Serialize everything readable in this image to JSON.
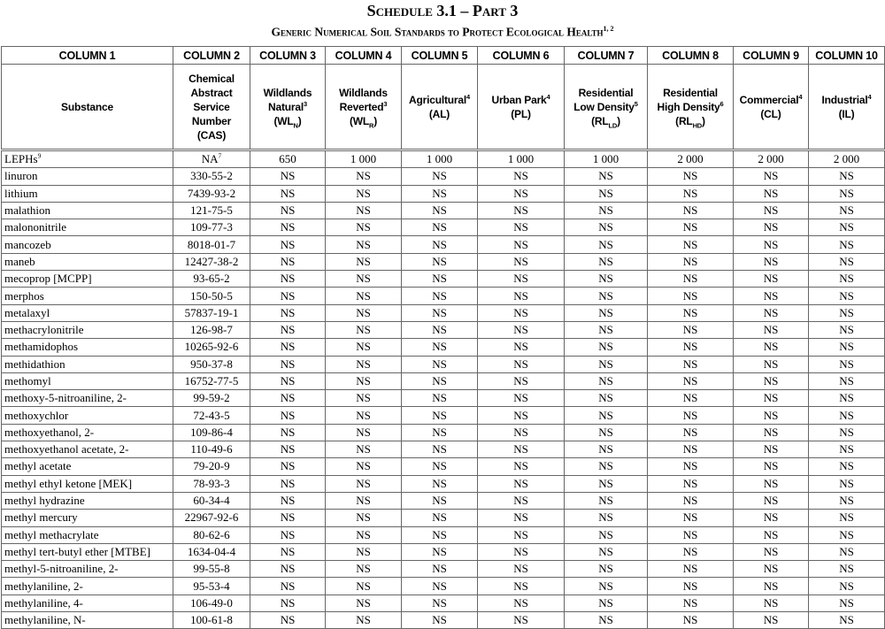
{
  "title": "Schedule 3.1 – Part 3",
  "subtitle": "Generic Numerical Soil Standards to Protect Ecological Health",
  "subtitle_sup": "1, 2",
  "columns": [
    {
      "number": "COLUMN 1",
      "lines": [
        [
          "Substance"
        ]
      ]
    },
    {
      "number": "COLUMN 2",
      "lines": [
        [
          "Chemical"
        ],
        [
          "Abstract"
        ],
        [
          "Service"
        ],
        [
          "Number"
        ],
        [
          "(CAS)"
        ]
      ]
    },
    {
      "number": "COLUMN 3",
      "lines": [
        [
          "Wildlands"
        ],
        [
          "Natural",
          {
            "sup": "3"
          }
        ],
        [
          "(WL",
          {
            "sub": "N"
          },
          ")"
        ]
      ]
    },
    {
      "number": "COLUMN 4",
      "lines": [
        [
          "Wildlands"
        ],
        [
          "Reverted",
          {
            "sup": "3"
          }
        ],
        [
          "(WL",
          {
            "sub": "R"
          },
          ")"
        ]
      ]
    },
    {
      "number": "COLUMN 5",
      "lines": [
        [
          "Agricultural",
          {
            "sup": "4"
          }
        ],
        [
          "(AL)"
        ]
      ]
    },
    {
      "number": "COLUMN 6",
      "lines": [
        [
          "Urban Park",
          {
            "sup": "4"
          }
        ],
        [
          "(PL)"
        ]
      ]
    },
    {
      "number": "COLUMN 7",
      "lines": [
        [
          "Residential"
        ],
        [
          "Low Density",
          {
            "sup": "5"
          }
        ],
        [
          "(RL",
          {
            "sub": "LD"
          },
          ")"
        ]
      ]
    },
    {
      "number": "COLUMN 8",
      "lines": [
        [
          "Residential"
        ],
        [
          "High Density",
          {
            "sup": "6"
          }
        ],
        [
          "(RL",
          {
            "sub": "HD"
          },
          ")"
        ]
      ]
    },
    {
      "number": "COLUMN 9",
      "lines": [
        [
          "Commercial",
          {
            "sup": "4"
          }
        ],
        [
          "(CL)"
        ]
      ]
    },
    {
      "number": "COLUMN 10",
      "lines": [
        [
          "Industrial",
          {
            "sup": "4"
          }
        ],
        [
          "(IL)"
        ]
      ]
    }
  ],
  "rows": [
    {
      "substance": "LEPHs",
      "substance_sup": "9",
      "cas": "NA",
      "cas_sup": "7",
      "values": [
        "650",
        "1 000",
        "1 000",
        "1 000",
        "1 000",
        "2 000",
        "2 000",
        "2 000"
      ]
    },
    {
      "substance": "linuron",
      "cas": "330-55-2",
      "values": [
        "NS",
        "NS",
        "NS",
        "NS",
        "NS",
        "NS",
        "NS",
        "NS"
      ]
    },
    {
      "substance": "lithium",
      "cas": "7439-93-2",
      "values": [
        "NS",
        "NS",
        "NS",
        "NS",
        "NS",
        "NS",
        "NS",
        "NS"
      ]
    },
    {
      "substance": "malathion",
      "cas": "121-75-5",
      "values": [
        "NS",
        "NS",
        "NS",
        "NS",
        "NS",
        "NS",
        "NS",
        "NS"
      ]
    },
    {
      "substance": "malononitrile",
      "cas": "109-77-3",
      "values": [
        "NS",
        "NS",
        "NS",
        "NS",
        "NS",
        "NS",
        "NS",
        "NS"
      ]
    },
    {
      "substance": "mancozeb",
      "cas": "8018-01-7",
      "values": [
        "NS",
        "NS",
        "NS",
        "NS",
        "NS",
        "NS",
        "NS",
        "NS"
      ]
    },
    {
      "substance": "maneb",
      "cas": "12427-38-2",
      "values": [
        "NS",
        "NS",
        "NS",
        "NS",
        "NS",
        "NS",
        "NS",
        "NS"
      ]
    },
    {
      "substance": "mecoprop [MCPP]",
      "cas": "93-65-2",
      "values": [
        "NS",
        "NS",
        "NS",
        "NS",
        "NS",
        "NS",
        "NS",
        "NS"
      ]
    },
    {
      "substance": "merphos",
      "cas": "150-50-5",
      "values": [
        "NS",
        "NS",
        "NS",
        "NS",
        "NS",
        "NS",
        "NS",
        "NS"
      ]
    },
    {
      "substance": "metalaxyl",
      "cas": "57837-19-1",
      "values": [
        "NS",
        "NS",
        "NS",
        "NS",
        "NS",
        "NS",
        "NS",
        "NS"
      ]
    },
    {
      "substance": "methacrylonitrile",
      "cas": "126-98-7",
      "values": [
        "NS",
        "NS",
        "NS",
        "NS",
        "NS",
        "NS",
        "NS",
        "NS"
      ]
    },
    {
      "substance": "methamidophos",
      "cas": "10265-92-6",
      "values": [
        "NS",
        "NS",
        "NS",
        "NS",
        "NS",
        "NS",
        "NS",
        "NS"
      ]
    },
    {
      "substance": "methidathion",
      "cas": "950-37-8",
      "values": [
        "NS",
        "NS",
        "NS",
        "NS",
        "NS",
        "NS",
        "NS",
        "NS"
      ]
    },
    {
      "substance": "methomyl",
      "cas": "16752-77-5",
      "values": [
        "NS",
        "NS",
        "NS",
        "NS",
        "NS",
        "NS",
        "NS",
        "NS"
      ]
    },
    {
      "substance": "methoxy-5-nitroaniline, 2-",
      "cas": "99-59-2",
      "values": [
        "NS",
        "NS",
        "NS",
        "NS",
        "NS",
        "NS",
        "NS",
        "NS"
      ]
    },
    {
      "substance": "methoxychlor",
      "cas": "72-43-5",
      "values": [
        "NS",
        "NS",
        "NS",
        "NS",
        "NS",
        "NS",
        "NS",
        "NS"
      ]
    },
    {
      "substance": "methoxyethanol, 2-",
      "cas": "109-86-4",
      "values": [
        "NS",
        "NS",
        "NS",
        "NS",
        "NS",
        "NS",
        "NS",
        "NS"
      ]
    },
    {
      "substance": "methoxyethanol acetate, 2-",
      "cas": "110-49-6",
      "values": [
        "NS",
        "NS",
        "NS",
        "NS",
        "NS",
        "NS",
        "NS",
        "NS"
      ]
    },
    {
      "substance": "methyl acetate",
      "cas": "79-20-9",
      "values": [
        "NS",
        "NS",
        "NS",
        "NS",
        "NS",
        "NS",
        "NS",
        "NS"
      ]
    },
    {
      "substance": "methyl ethyl ketone [MEK]",
      "cas": "78-93-3",
      "values": [
        "NS",
        "NS",
        "NS",
        "NS",
        "NS",
        "NS",
        "NS",
        "NS"
      ]
    },
    {
      "substance": "methyl hydrazine",
      "cas": "60-34-4",
      "values": [
        "NS",
        "NS",
        "NS",
        "NS",
        "NS",
        "NS",
        "NS",
        "NS"
      ]
    },
    {
      "substance": "methyl mercury",
      "cas": "22967-92-6",
      "values": [
        "NS",
        "NS",
        "NS",
        "NS",
        "NS",
        "NS",
        "NS",
        "NS"
      ]
    },
    {
      "substance": "methyl methacrylate",
      "cas": "80-62-6",
      "values": [
        "NS",
        "NS",
        "NS",
        "NS",
        "NS",
        "NS",
        "NS",
        "NS"
      ]
    },
    {
      "substance": "methyl tert-butyl ether [MTBE]",
      "cas": "1634-04-4",
      "values": [
        "NS",
        "NS",
        "NS",
        "NS",
        "NS",
        "NS",
        "NS",
        "NS"
      ]
    },
    {
      "substance": "methyl-5-nitroaniline, 2-",
      "cas": "99-55-8",
      "values": [
        "NS",
        "NS",
        "NS",
        "NS",
        "NS",
        "NS",
        "NS",
        "NS"
      ]
    },
    {
      "substance": "methylaniline, 2-",
      "cas": "95-53-4",
      "values": [
        "NS",
        "NS",
        "NS",
        "NS",
        "NS",
        "NS",
        "NS",
        "NS"
      ]
    },
    {
      "substance": "methylaniline, 4-",
      "cas": "106-49-0",
      "values": [
        "NS",
        "NS",
        "NS",
        "NS",
        "NS",
        "NS",
        "NS",
        "NS"
      ]
    },
    {
      "substance": "methylaniline, N-",
      "cas": "100-61-8",
      "values": [
        "NS",
        "NS",
        "NS",
        "NS",
        "NS",
        "NS",
        "NS",
        "NS"
      ]
    }
  ]
}
